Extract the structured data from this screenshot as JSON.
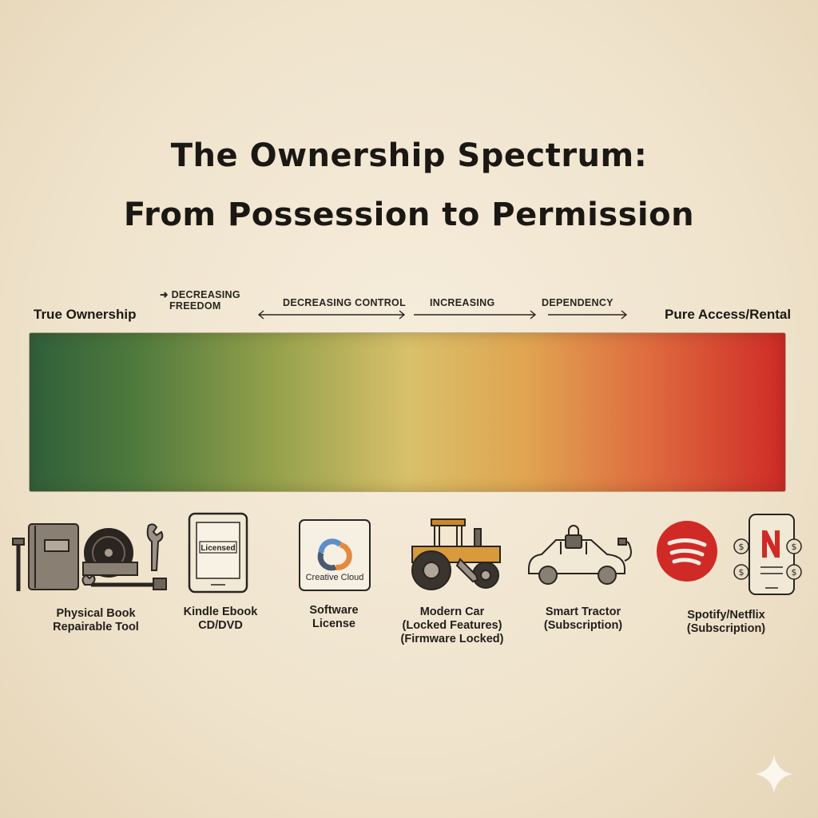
{
  "title": {
    "line1": "The Ownership Spectrum:",
    "line2": "From Possession to Permission"
  },
  "spectrum": {
    "left_label": "True Ownership",
    "right_label": "Pure Access/Rental",
    "colors": [
      "#2f5f3a",
      "#93a04b",
      "#d9c06a",
      "#e0a451",
      "#cf2a26"
    ]
  },
  "arrows": {
    "freedom_line1": "DECREASING",
    "freedom_line2": "FREEDOM",
    "control": "DECREASING CONTROL",
    "increasing": "INCREASING",
    "dependency": "DEPENDENCY"
  },
  "items": [
    {
      "icon": "book-record-tools-icon",
      "lines": [
        "Physical Book",
        "Repairable Tool"
      ]
    },
    {
      "icon": "ereader-icon",
      "device_text": "Licensed",
      "lines": [
        "Kindle Ebook",
        "CD/DVD"
      ]
    },
    {
      "icon": "creative-cloud-icon",
      "device_text": "Creative Cloud",
      "lines": [
        "Software",
        "License"
      ]
    },
    {
      "icon": "tractor-icon",
      "lines": [
        "Modern Car",
        "(Locked Features)",
        "(Firmware Locked)"
      ]
    },
    {
      "icon": "locked-car-icon",
      "lines": [
        "Smart Tractor",
        "(Subscription)"
      ]
    },
    {
      "icon": "spotify-netflix-icon",
      "lines": [
        "Spotify/Netflix",
        "(Subscription)"
      ]
    }
  ]
}
